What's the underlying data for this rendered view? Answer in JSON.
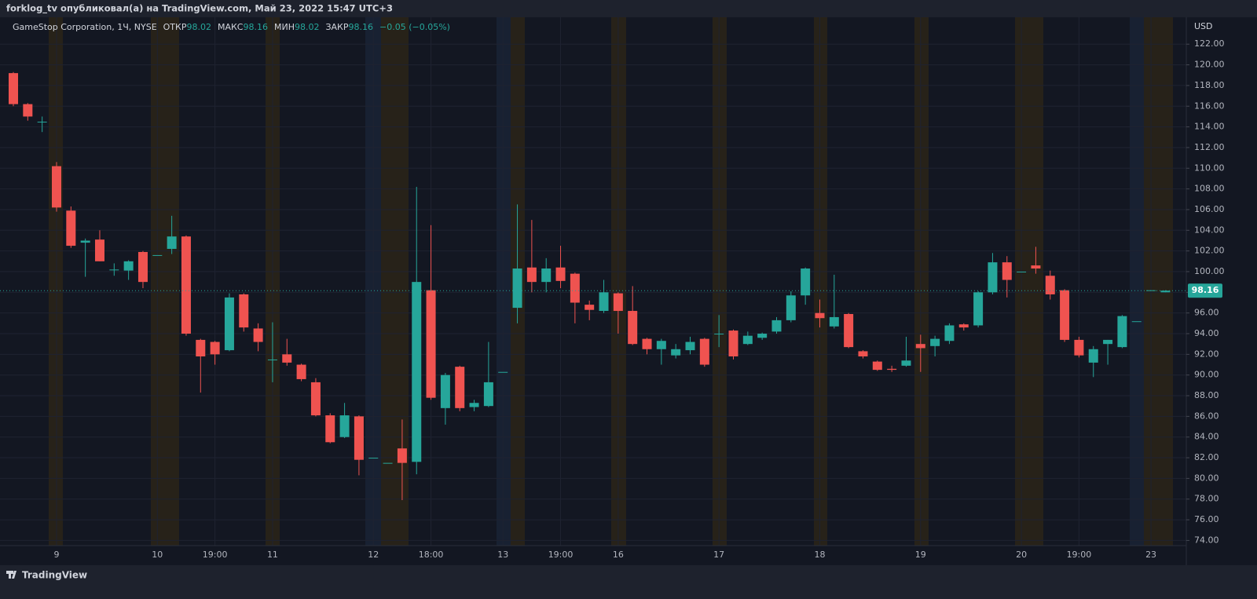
{
  "header": {
    "title": "forklog_tv опубликовал(а) на TradingView.com, Май 23, 2022 15:47 UTC+3"
  },
  "footer": {
    "brand": "TradingView"
  },
  "chart_data": {
    "type": "candlestick",
    "symbol": "GameStop Corporation, 1Ч, NYSE",
    "legend": [
      {
        "label": "ОТКР",
        "value": "98.02"
      },
      {
        "label": "МАКС",
        "value": "98.16"
      },
      {
        "label": "МИН",
        "value": "98.02"
      },
      {
        "label": "ЗАКР",
        "value": "98.16"
      }
    ],
    "change": "−0.05 (−0.05%)",
    "currency": "USD",
    "up_color": "#26a69a",
    "down_color": "#ef5350",
    "last_price": 98.16,
    "categories": [
      null,
      null,
      null,
      "9",
      null,
      null,
      null,
      null,
      null,
      null,
      "10",
      null,
      null,
      null,
      "19:00",
      null,
      null,
      null,
      "11",
      null,
      null,
      null,
      null,
      null,
      null,
      "12",
      null,
      null,
      null,
      "18:00",
      null,
      null,
      null,
      null,
      "13",
      null,
      null,
      null,
      "19:00",
      null,
      null,
      null,
      "16",
      null,
      null,
      null,
      null,
      null,
      null,
      "17",
      null,
      null,
      null,
      null,
      null,
      null,
      "18",
      null,
      null,
      null,
      null,
      null,
      null,
      "19",
      null,
      null,
      null,
      null,
      null,
      null,
      "20",
      null,
      null,
      null,
      "19:00",
      null,
      null,
      null,
      null,
      "23",
      null
    ],
    "open": [
      119.2,
      116.2,
      114.5,
      110.2,
      105.9,
      102.8,
      103.1,
      100.2,
      100.1,
      101.9,
      101.6,
      102.2,
      103.4,
      93.4,
      93.2,
      92.4,
      97.8,
      94.5,
      91.5,
      92.0,
      91.0,
      89.3,
      86.1,
      84.0,
      86.0,
      82.0,
      81.5,
      82.9,
      81.6,
      98.2,
      86.8,
      90.8,
      86.9,
      87.0,
      90.3,
      96.5,
      100.4,
      99.0,
      100.4,
      99.8,
      96.8,
      96.2,
      97.9,
      96.2,
      93.5,
      92.5,
      91.9,
      92.4,
      93.5,
      94.0,
      94.3,
      93.0,
      93.6,
      94.2,
      95.3,
      97.7,
      96.0,
      94.7,
      95.9,
      92.3,
      91.3,
      90.6,
      90.9,
      93.0,
      92.8,
      93.3,
      94.9,
      94.8,
      98.0,
      100.9,
      100.0,
      100.6,
      99.6,
      98.2,
      93.4,
      91.2,
      93.0,
      92.7,
      95.2,
      98.2,
      98.0
    ],
    "high": [
      119.3,
      116.3,
      115.0,
      110.6,
      106.3,
      103.2,
      104.0,
      100.8,
      101.1,
      102.0,
      101.6,
      105.4,
      103.5,
      93.5,
      93.3,
      97.9,
      97.9,
      95.0,
      95.1,
      93.5,
      91.1,
      89.7,
      86.3,
      87.3,
      86.1,
      82.0,
      81.5,
      85.7,
      108.2,
      104.5,
      90.2,
      90.9,
      87.6,
      93.2,
      90.3,
      106.5,
      105.0,
      101.3,
      102.5,
      99.9,
      97.2,
      99.2,
      98.0,
      98.6,
      93.6,
      93.5,
      93.0,
      93.7,
      93.6,
      95.8,
      94.4,
      94.2,
      94.1,
      95.6,
      98.1,
      100.4,
      97.3,
      99.7,
      96.0,
      92.4,
      91.4,
      90.9,
      93.7,
      93.9,
      93.8,
      95.0,
      95.0,
      98.1,
      101.8,
      101.5,
      100.0,
      102.4,
      100.1,
      98.3,
      93.7,
      92.8,
      93.4,
      95.8,
      95.2,
      98.2,
      98.2
    ],
    "low": [
      116.0,
      114.6,
      113.5,
      105.8,
      102.3,
      99.5,
      101.0,
      99.6,
      99.2,
      98.4,
      101.6,
      101.7,
      93.8,
      88.3,
      91.0,
      92.3,
      94.2,
      92.3,
      89.3,
      90.9,
      89.4,
      86.0,
      83.4,
      83.9,
      80.3,
      82.0,
      81.5,
      77.9,
      80.4,
      87.6,
      85.2,
      86.5,
      86.5,
      86.9,
      90.3,
      95.0,
      98.0,
      98.0,
      98.4,
      95.0,
      95.3,
      96.0,
      94.0,
      92.9,
      92.0,
      91.0,
      91.6,
      92.0,
      90.8,
      92.7,
      91.5,
      92.9,
      93.4,
      94.0,
      95.1,
      96.8,
      94.6,
      94.5,
      92.6,
      91.6,
      90.4,
      90.3,
      90.8,
      90.3,
      91.8,
      93.0,
      94.3,
      94.6,
      97.8,
      97.5,
      100.0,
      99.8,
      97.3,
      93.2,
      91.7,
      89.8,
      91.0,
      92.6,
      95.2,
      98.2,
      98.0
    ],
    "close": [
      116.2,
      115.0,
      114.5,
      106.2,
      102.5,
      103.0,
      101.0,
      100.2,
      101.0,
      99.0,
      101.6,
      103.4,
      94.0,
      91.8,
      92.0,
      97.5,
      94.6,
      93.2,
      91.5,
      91.2,
      89.6,
      86.1,
      83.5,
      86.1,
      81.8,
      82.0,
      81.5,
      81.5,
      99.0,
      87.8,
      90.0,
      86.8,
      87.3,
      89.3,
      90.3,
      100.3,
      99.0,
      100.3,
      99.1,
      97.0,
      96.3,
      98.0,
      96.2,
      93.0,
      92.5,
      93.3,
      92.5,
      93.2,
      91.0,
      94.0,
      91.8,
      93.8,
      94.0,
      95.3,
      97.7,
      100.3,
      95.5,
      95.6,
      92.7,
      91.8,
      90.5,
      90.5,
      91.4,
      92.6,
      93.5,
      94.8,
      94.6,
      98.0,
      100.9,
      99.2,
      100.0,
      100.3,
      97.8,
      93.4,
      91.9,
      92.5,
      93.4,
      95.7,
      95.2,
      98.2,
      98.16
    ],
    "ylim": [
      73.5,
      124.6
    ],
    "yticks": [
      {
        "value": 74,
        "label": "74.00"
      },
      {
        "value": 76,
        "label": "76.00"
      },
      {
        "value": 78,
        "label": "78.00"
      },
      {
        "value": 80,
        "label": "80.00"
      },
      {
        "value": 82,
        "label": "82.00"
      },
      {
        "value": 84,
        "label": "84.00"
      },
      {
        "value": 86,
        "label": "86.00"
      },
      {
        "value": 88,
        "label": "88.00"
      },
      {
        "value": 90,
        "label": "90.00"
      },
      {
        "value": 92,
        "label": "92.00"
      },
      {
        "value": 94,
        "label": "94.00"
      },
      {
        "value": 96,
        "label": "96.00"
      },
      {
        "value": 98,
        "label": "98.00"
      },
      {
        "value": 100,
        "label": "100.00"
      },
      {
        "value": 102,
        "label": "102.00"
      },
      {
        "value": 104,
        "label": "104.00"
      },
      {
        "value": 106,
        "label": "106.00"
      },
      {
        "value": 108,
        "label": "108.00"
      },
      {
        "value": 110,
        "label": "110.00"
      },
      {
        "value": 112,
        "label": "112.00"
      },
      {
        "value": 114,
        "label": "114.00"
      },
      {
        "value": 116,
        "label": "116.00"
      },
      {
        "value": 118,
        "label": "118.00"
      },
      {
        "value": 120,
        "label": "120.00"
      },
      {
        "value": 122,
        "label": "122.00"
      }
    ],
    "grid": true
  }
}
